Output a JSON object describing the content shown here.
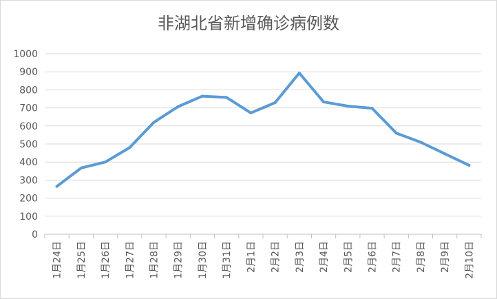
{
  "chart_data": {
    "type": "line",
    "title": "非湖北省新增确诊病例数",
    "xlabel": "",
    "ylabel": "",
    "categories": [
      "1月24日",
      "1月25日",
      "1月26日",
      "1月27日",
      "1月28日",
      "1月29日",
      "1月30日",
      "1月31日",
      "2月1日",
      "2月2日",
      "2月3日",
      "2月4日",
      "2月5日",
      "2月6日",
      "2月7日",
      "2月8日",
      "2月9日",
      "2月10日"
    ],
    "series": [
      {
        "values": [
          265,
          367,
          400,
          480,
          620,
          707,
          765,
          758,
          672,
          729,
          893,
          733,
          710,
          698,
          560,
          510,
          446,
          382
        ],
        "color": "#5b9bd5"
      }
    ],
    "ylim": [
      0,
      1000
    ],
    "yticks": [
      "0",
      "100",
      "200",
      "300",
      "400",
      "500",
      "600",
      "700",
      "800",
      "900",
      "1000"
    ],
    "grid": true,
    "legend": "none"
  }
}
